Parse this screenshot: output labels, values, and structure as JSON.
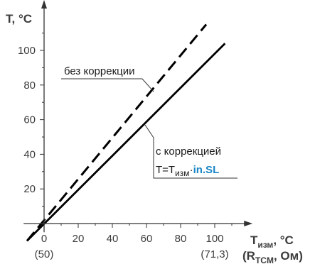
{
  "chart_data": {
    "type": "line",
    "y_axis": {
      "title": "T, °C",
      "ylim": [
        -5,
        125
      ],
      "ticks": [
        20,
        40,
        60,
        80,
        100
      ]
    },
    "x_axis": {
      "title_main": "T",
      "title_sub": "изм",
      "title_unit": ", °C",
      "alt_title_open": "(R",
      "alt_title_sub": "TCM",
      "alt_title_unit": ", Ом)",
      "xlim": [
        -12,
        118
      ],
      "ticks": [
        0,
        20,
        40,
        60,
        80,
        100
      ],
      "tick_labels": [
        "0",
        "20",
        "40",
        "60",
        "80",
        "100"
      ],
      "alt_ticks": [
        {
          "x": 0,
          "label": "(50)"
        },
        {
          "x": 100,
          "label": "(71,3)"
        }
      ]
    },
    "series": [
      {
        "style": "dashed",
        "label": "без коррекции",
        "points": [
          [
            -10,
            -10
          ],
          [
            95,
            115
          ]
        ]
      },
      {
        "style": "solid",
        "label_line1": "с коррекцией",
        "formula_text": "T=T",
        "formula_sub": "изм",
        "formula_dot": "·",
        "formula_param": "in.SL",
        "points": [
          [
            -10,
            -10
          ],
          [
            106,
            104
          ]
        ]
      }
    ],
    "colors": {
      "axis": "#333333",
      "line": "#000000",
      "text": "#3c3c3c",
      "accent": "#1a86c7"
    }
  }
}
